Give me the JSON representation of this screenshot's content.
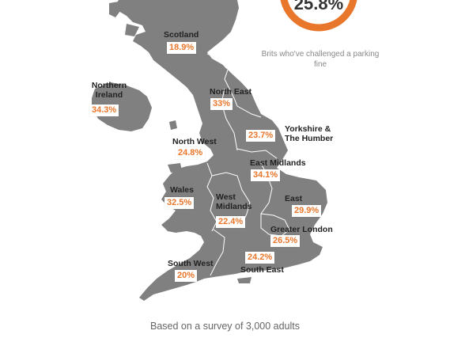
{
  "headline": {
    "value": "25.8%",
    "caption": "Brits who've challenged a parking fine",
    "ring_color": "#e8762b"
  },
  "map": {
    "land_color": "#808080",
    "border_color": "#ffffff",
    "regions": [
      {
        "id": "scotland",
        "name": "Scotland",
        "value": "18.9%"
      },
      {
        "id": "northern-ireland",
        "name": "Northern Ireland",
        "value": "34.3%"
      },
      {
        "id": "north-east",
        "name": "North East",
        "value": "33%"
      },
      {
        "id": "north-west",
        "name": "North West",
        "value": "24.8%"
      },
      {
        "id": "yorkshire",
        "name": "Yorkshire & The Humber",
        "value": "23.7%"
      },
      {
        "id": "east-midlands",
        "name": "East Midlands",
        "value": "34.1%"
      },
      {
        "id": "wales",
        "name": "Wales",
        "value": "32.5%"
      },
      {
        "id": "west-midlands",
        "name": "West Midlands",
        "value": "22.4%"
      },
      {
        "id": "east",
        "name": "East",
        "value": "29.9%"
      },
      {
        "id": "greater-london",
        "name": "Greater London",
        "value": "26.5%"
      },
      {
        "id": "south-east",
        "name": "South East",
        "value": "24.2%"
      },
      {
        "id": "south-west",
        "name": "South West",
        "value": "20%"
      }
    ]
  },
  "footer": {
    "caption": "Based on a survey of 3,000 adults"
  }
}
